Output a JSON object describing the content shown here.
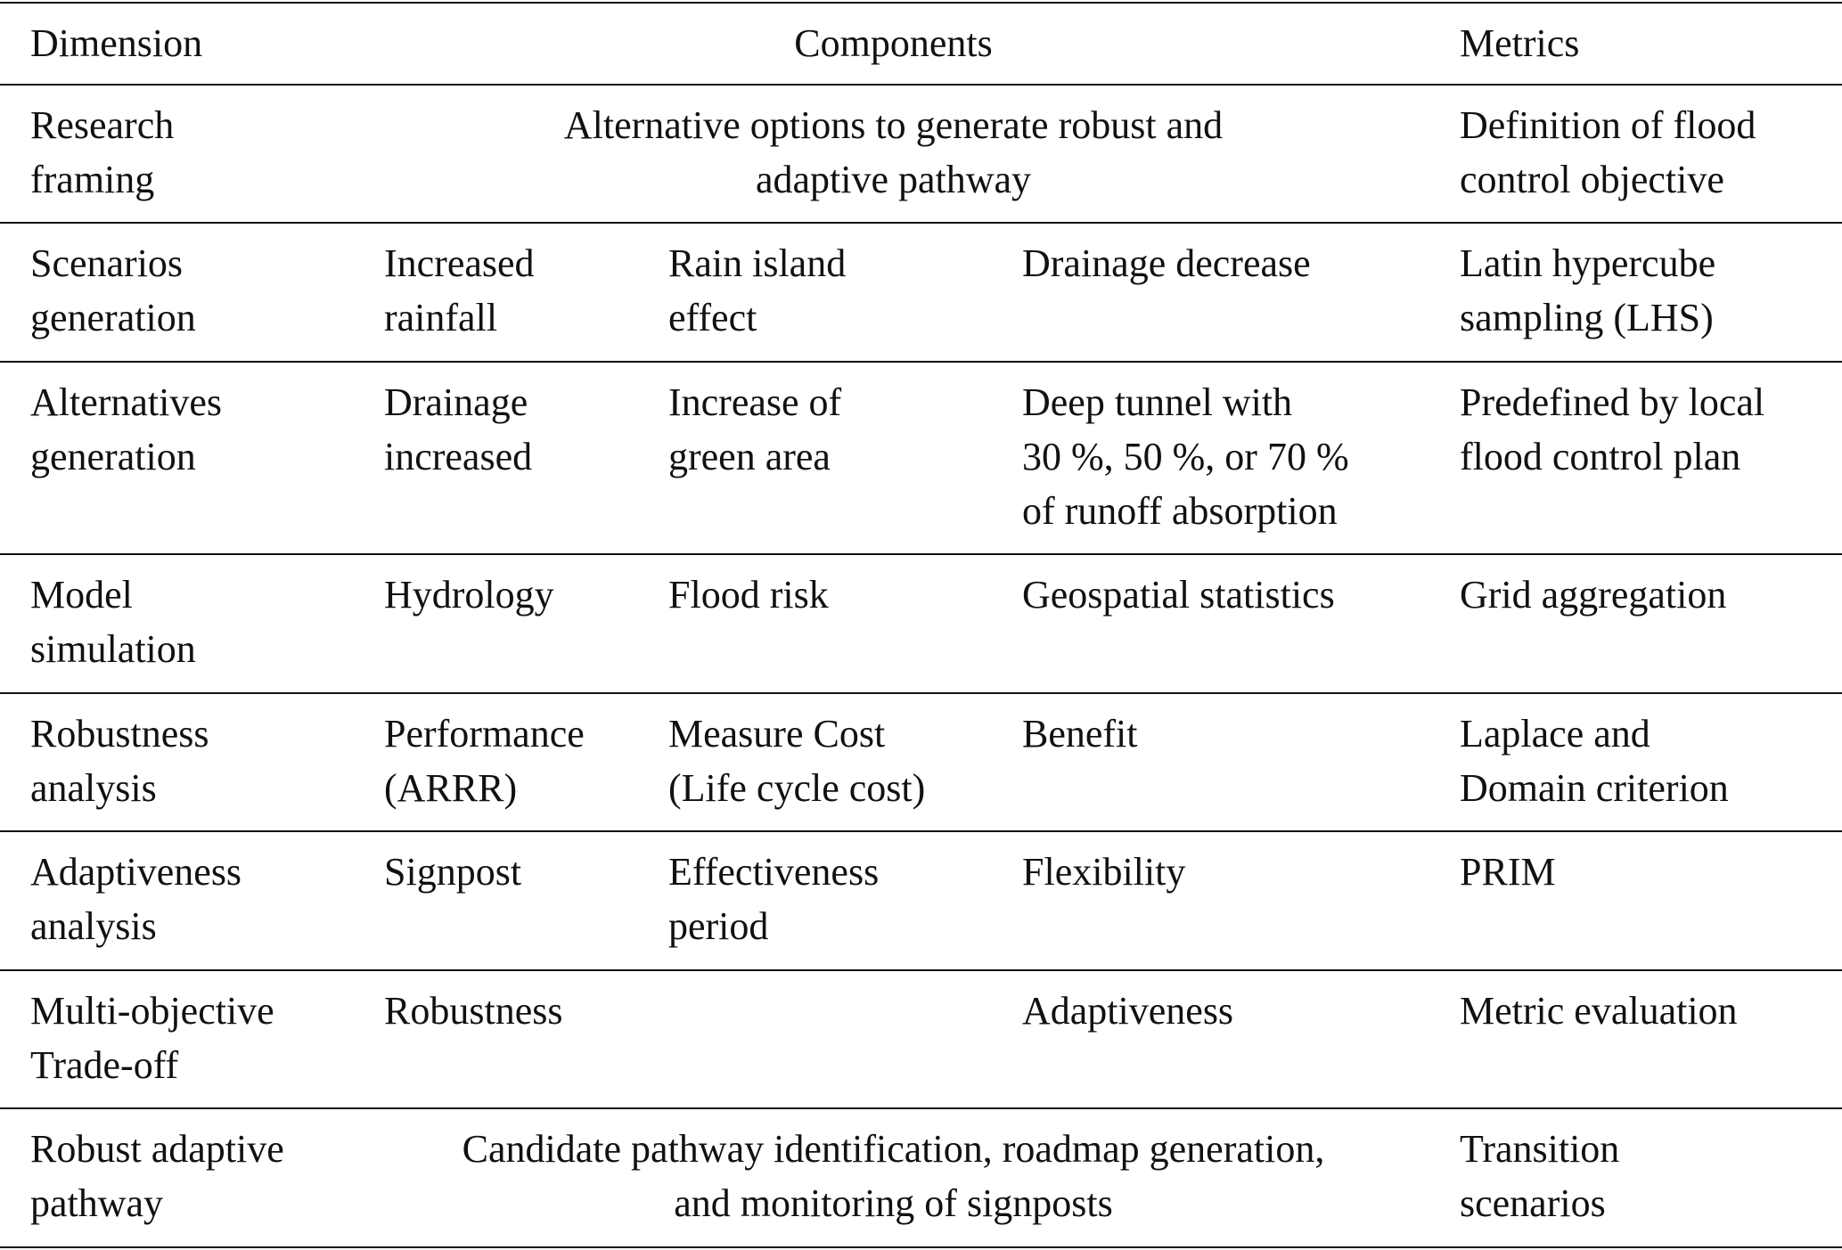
{
  "header": {
    "dimension": "Dimension",
    "components": "Components",
    "metrics": "Metrics"
  },
  "rows": [
    {
      "dimension": [
        "Research",
        "framing"
      ],
      "components_span": [
        "Alternative options to generate robust and",
        "adaptive pathway"
      ],
      "metrics": [
        "Definition of flood",
        "control objective"
      ]
    },
    {
      "dimension": [
        "Scenarios",
        "generation"
      ],
      "components": [
        [
          "Increased",
          "rainfall"
        ],
        [
          "Rain island",
          "effect"
        ],
        [
          "Drainage decrease"
        ]
      ],
      "metrics": [
        "Latin hypercube",
        "sampling (LHS)"
      ]
    },
    {
      "dimension": [
        "Alternatives",
        "generation"
      ],
      "components": [
        [
          "Drainage",
          "increased"
        ],
        [
          "Increase of",
          "green area"
        ],
        [
          "Deep tunnel with",
          "30 %, 50 %, or 70 %",
          "of runoff absorption"
        ]
      ],
      "metrics": [
        "Predefined by local",
        "flood control plan"
      ]
    },
    {
      "dimension": [
        "Model",
        "simulation"
      ],
      "components": [
        [
          "Hydrology"
        ],
        [
          "Flood risk"
        ],
        [
          "Geospatial statistics"
        ]
      ],
      "metrics": [
        "Grid aggregation"
      ]
    },
    {
      "dimension": [
        "Robustness",
        "analysis"
      ],
      "components": [
        [
          "Performance",
          "(ARRR)"
        ],
        [
          "Measure Cost",
          "(Life cycle cost)"
        ],
        [
          "Benefit"
        ]
      ],
      "metrics": [
        "Laplace and",
        "Domain criterion"
      ]
    },
    {
      "dimension": [
        "Adaptiveness",
        "analysis"
      ],
      "components": [
        [
          "Signpost"
        ],
        [
          "Effectiveness",
          "period"
        ],
        [
          "Flexibility"
        ]
      ],
      "metrics": [
        "PRIM"
      ]
    },
    {
      "dimension": [
        "Multi-objective",
        "Trade-off"
      ],
      "components": [
        [
          "Robustness"
        ],
        [],
        [
          "Adaptiveness"
        ]
      ],
      "metrics": [
        "Metric evaluation"
      ]
    },
    {
      "dimension": [
        "Robust adaptive",
        "pathway"
      ],
      "components_span": [
        "Candidate pathway identification, roadmap generation,",
        "and monitoring of signposts"
      ],
      "metrics": [
        "Transition",
        "scenarios"
      ]
    }
  ]
}
